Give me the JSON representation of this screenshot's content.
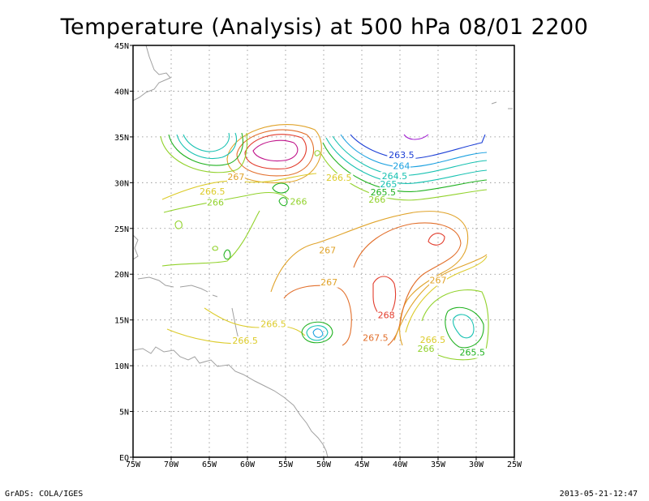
{
  "title": "Temperature (Analysis) at 500 hPa 08/01 2200",
  "footer": {
    "left": "GrADS: COLA/IGES",
    "right": "2013-05-21-12:47"
  },
  "chart_data": {
    "type": "contour",
    "title": "Temperature (Analysis) at 500 hPa 08/01 2200",
    "xlim": [
      -75,
      -25
    ],
    "ylim": [
      0,
      45
    ],
    "grid": true,
    "x_ticks": [
      {
        "v": -75,
        "label": "75W"
      },
      {
        "v": -70,
        "label": "70W"
      },
      {
        "v": -65,
        "label": "65W"
      },
      {
        "v": -60,
        "label": "60W"
      },
      {
        "v": -55,
        "label": "55W"
      },
      {
        "v": -50,
        "label": "50W"
      },
      {
        "v": -45,
        "label": "45W"
      },
      {
        "v": -40,
        "label": "40W"
      },
      {
        "v": -35,
        "label": "35W"
      },
      {
        "v": -30,
        "label": "30W"
      },
      {
        "v": -25,
        "label": "25W"
      }
    ],
    "y_ticks": [
      {
        "v": 0,
        "label": "EQ"
      },
      {
        "v": 5,
        "label": "5N"
      },
      {
        "v": 10,
        "label": "10N"
      },
      {
        "v": 15,
        "label": "15N"
      },
      {
        "v": 20,
        "label": "20N"
      },
      {
        "v": 25,
        "label": "25N"
      },
      {
        "v": 30,
        "label": "30N"
      },
      {
        "v": 35,
        "label": "35N"
      },
      {
        "v": 40,
        "label": "40N"
      },
      {
        "v": 45,
        "label": "45N"
      }
    ],
    "contour_labels": [
      {
        "text": "263.5",
        "lon": -39.8,
        "lat": 32.7,
        "color": "#1c3fd6"
      },
      {
        "text": "264",
        "lon": -39.8,
        "lat": 31.5,
        "color": "#1aa0e0"
      },
      {
        "text": "264.5",
        "lon": -40.7,
        "lat": 30.4,
        "color": "#19c2b2"
      },
      {
        "text": "265",
        "lon": -41.5,
        "lat": 29.5,
        "color": "#19c2b2"
      },
      {
        "text": "265.5",
        "lon": -42.2,
        "lat": 28.6,
        "color": "#21b221"
      },
      {
        "text": "266",
        "lon": -43.0,
        "lat": 27.8,
        "color": "#92d22c"
      },
      {
        "text": "266.5",
        "lon": -64.6,
        "lat": 28.7,
        "color": "#dccb2a"
      },
      {
        "text": "266",
        "lon": -64.2,
        "lat": 27.5,
        "color": "#92d22c"
      },
      {
        "text": "267",
        "lon": -61.5,
        "lat": 30.3,
        "color": "#e0a32a"
      },
      {
        "text": "266.5",
        "lon": -48.0,
        "lat": 30.2,
        "color": "#dccb2a"
      },
      {
        "text": "266",
        "lon": -53.3,
        "lat": 27.6,
        "color": "#92d22c"
      },
      {
        "text": "267",
        "lon": -49.5,
        "lat": 22.3,
        "color": "#e0a32a"
      },
      {
        "text": "267",
        "lon": -49.3,
        "lat": 18.8,
        "color": "#e0a32a"
      },
      {
        "text": "267",
        "lon": -35.0,
        "lat": 19.0,
        "color": "#e0a32a"
      },
      {
        "text": "268",
        "lon": -41.8,
        "lat": 15.2,
        "color": "#e23c2c"
      },
      {
        "text": "267.5",
        "lon": -43.2,
        "lat": 12.7,
        "color": "#e26f2b"
      },
      {
        "text": "266.5",
        "lon": -56.6,
        "lat": 14.2,
        "color": "#dccb2a"
      },
      {
        "text": "266.5",
        "lon": -60.3,
        "lat": 12.4,
        "color": "#dccb2a"
      },
      {
        "text": "266.5",
        "lon": -35.7,
        "lat": 12.5,
        "color": "#dccb2a"
      },
      {
        "text": "266",
        "lon": -36.6,
        "lat": 11.5,
        "color": "#92d22c"
      },
      {
        "text": "265.5",
        "lon": -30.5,
        "lat": 11.1,
        "color": "#21b221"
      }
    ],
    "colors": {
      "lev263_5": "#1c3fd6",
      "lev264": "#1aa0e0",
      "lev264_5": "#19c2b2",
      "lev265_5": "#21b221",
      "lev266": "#92d22c",
      "lev266_5": "#dccb2a",
      "lev267": "#e0a32a",
      "lev267_5": "#e26f2b",
      "lev268": "#e23c2c",
      "cold_cyan": "#19c2b2",
      "purple": "#a01cd0",
      "magenta": "#c0138a",
      "coast": "#a0a0a0",
      "grid": "#888888"
    }
  }
}
